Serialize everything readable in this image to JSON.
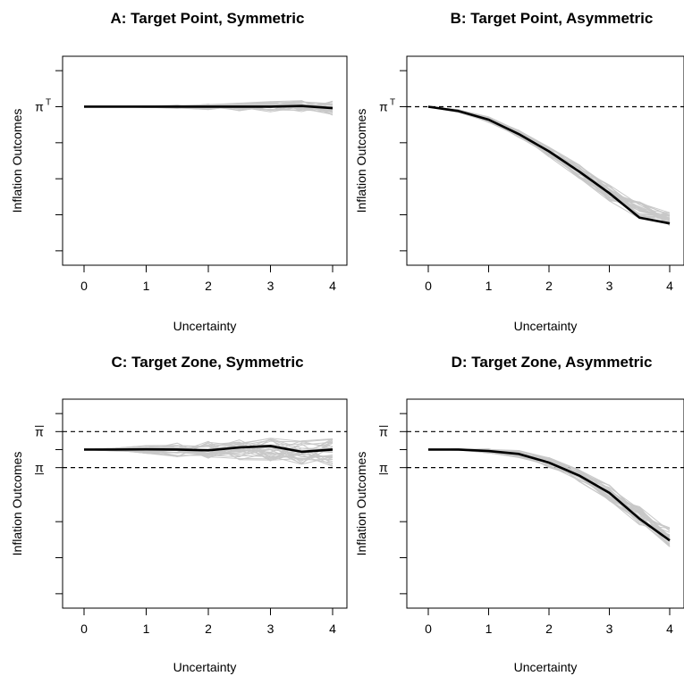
{
  "chart_data": [
    {
      "type": "line",
      "title": "A: Target Point, Symmetric",
      "xlabel": "Uncertainty",
      "ylabel": "Inflation Outcomes",
      "x_ticks": [
        "0",
        "1",
        "2",
        "3",
        "4"
      ],
      "xlim": [
        0,
        4
      ],
      "ylim": [
        -1.1,
        0.35
      ],
      "y_tick_values": [
        0.25,
        0,
        -0.25,
        -0.5,
        -0.75,
        -1
      ],
      "y_tick_labels": [
        {
          "value": 0,
          "label": "π",
          "sup": "T"
        }
      ],
      "reference_lines": [],
      "x": [
        0,
        0.5,
        1,
        1.5,
        2,
        2.5,
        3,
        3.5,
        4
      ],
      "mean_series": [
        0,
        0,
        0,
        0,
        0,
        0,
        0,
        0.005,
        -0.01
      ],
      "sim_center": [
        0,
        0,
        0,
        0,
        0,
        0,
        0,
        0.005,
        -0.01
      ],
      "sim_spread": [
        0,
        0.002,
        0.005,
        0.012,
        0.02,
        0.028,
        0.036,
        0.042,
        0.05
      ],
      "sim_count": 30,
      "sim_color": "#c8c8c8",
      "mean_color": "#000000"
    },
    {
      "type": "line",
      "title": "B: Target Point, Asymmetric",
      "xlabel": "Uncertainty",
      "ylabel": "Inflation Outcomes",
      "x_ticks": [
        "0",
        "1",
        "2",
        "3",
        "4"
      ],
      "xlim": [
        0,
        4
      ],
      "ylim": [
        -1.1,
        0.35
      ],
      "y_tick_values": [
        0.25,
        0,
        -0.25,
        -0.5,
        -0.75,
        -1
      ],
      "y_tick_labels": [
        {
          "value": 0,
          "label": "π",
          "sup": "T"
        }
      ],
      "reference_lines": [
        0
      ],
      "x": [
        0,
        0.5,
        1,
        1.5,
        2,
        2.5,
        3,
        3.5,
        4
      ],
      "mean_series": [
        0,
        -0.03,
        -0.09,
        -0.19,
        -0.31,
        -0.45,
        -0.6,
        -0.77,
        -0.81
      ],
      "sim_center": [
        0,
        -0.03,
        -0.09,
        -0.19,
        -0.31,
        -0.45,
        -0.6,
        -0.72,
        -0.78
      ],
      "sim_spread": [
        0,
        0.01,
        0.02,
        0.03,
        0.04,
        0.05,
        0.06,
        0.06,
        0.05
      ],
      "sim_count": 30,
      "sim_color": "#c8c8c8",
      "mean_color": "#000000"
    },
    {
      "type": "line",
      "title": "C: Target Zone, Symmetric",
      "xlabel": "Uncertainty",
      "ylabel": "Inflation Outcomes",
      "x_ticks": [
        "0",
        "1",
        "2",
        "3",
        "4"
      ],
      "xlim": [
        0,
        4
      ],
      "ylim": [
        -1.1,
        0.35
      ],
      "y_tick_values": [
        0.25,
        0.125,
        0,
        -0.125,
        -0.5,
        -0.75,
        -1
      ],
      "y_tick_labels": [
        {
          "value": 0.125,
          "label": "π",
          "bar": "over"
        },
        {
          "value": -0.125,
          "label": "π",
          "bar": "under"
        }
      ],
      "reference_lines": [
        0.125,
        -0.125
      ],
      "x": [
        0,
        0.5,
        1,
        1.5,
        2,
        2.5,
        3,
        3.5,
        4
      ],
      "mean_series": [
        0,
        0,
        0.002,
        0,
        -0.005,
        0.015,
        0.025,
        -0.015,
        0
      ],
      "sim_center": [
        0,
        0,
        0,
        0,
        0,
        0,
        0,
        -0.02,
        -0.02
      ],
      "sim_spread": [
        0,
        0.01,
        0.03,
        0.05,
        0.06,
        0.07,
        0.08,
        0.09,
        0.1
      ],
      "sim_count": 30,
      "sim_color": "#c8c8c8",
      "mean_color": "#000000"
    },
    {
      "type": "line",
      "title": "D: Target Zone, Asymmetric",
      "xlabel": "Uncertainty",
      "ylabel": "Inflation Outcomes",
      "x_ticks": [
        "0",
        "1",
        "2",
        "3",
        "4"
      ],
      "xlim": [
        0,
        4
      ],
      "ylim": [
        -1.1,
        0.35
      ],
      "y_tick_values": [
        0.25,
        0.125,
        0,
        -0.125,
        -0.5,
        -0.75,
        -1
      ],
      "y_tick_labels": [
        {
          "value": 0.125,
          "label": "π",
          "bar": "over"
        },
        {
          "value": -0.125,
          "label": "π",
          "bar": "under"
        }
      ],
      "reference_lines": [
        0.125,
        -0.125
      ],
      "x": [
        0,
        0.5,
        1,
        1.5,
        2,
        2.5,
        3,
        3.5,
        4
      ],
      "mean_series": [
        0,
        0,
        -0.01,
        -0.03,
        -0.09,
        -0.18,
        -0.3,
        -0.48,
        -0.63
      ],
      "sim_center": [
        0,
        0,
        -0.01,
        -0.03,
        -0.09,
        -0.18,
        -0.3,
        -0.46,
        -0.61
      ],
      "sim_spread": [
        0,
        0.005,
        0.015,
        0.025,
        0.035,
        0.045,
        0.055,
        0.065,
        0.07
      ],
      "sim_count": 30,
      "sim_color": "#c8c8c8",
      "mean_color": "#000000"
    }
  ]
}
